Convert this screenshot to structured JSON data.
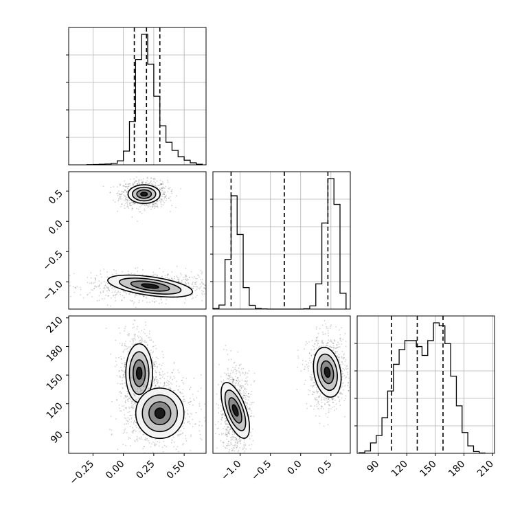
{
  "chart_data": [
    {
      "type": "histogram",
      "panel": "marginal-p1",
      "xlim": [
        -0.45,
        0.68
      ],
      "grid": true,
      "bin_edges": [
        -0.3,
        -0.25,
        -0.2,
        -0.15,
        -0.1,
        -0.05,
        0.0,
        0.05,
        0.1,
        0.15,
        0.2,
        0.25,
        0.3,
        0.35,
        0.4,
        0.45,
        0.5,
        0.55,
        0.6,
        0.65
      ],
      "counts": [
        1,
        2,
        4,
        6,
        10,
        28,
        95,
        300,
        728,
        902,
        696,
        474,
        270,
        156,
        100,
        56,
        32,
        14,
        4
      ],
      "quantile_lines": [
        0.09,
        0.19,
        0.3
      ]
    },
    {
      "type": "contour-scatter",
      "panel": "joint-p1-p2",
      "xlim": [
        -0.45,
        0.68
      ],
      "ylim": [
        -1.45,
        0.82
      ],
      "ytick_labels": [
        "0.5",
        "0.0",
        "−0.5",
        "−1.0"
      ],
      "yticks": [
        0.5,
        0.0,
        -0.5,
        -1.0
      ],
      "clusters": [
        {
          "center": [
            0.17,
            0.45
          ],
          "spread": [
            0.06,
            0.07
          ],
          "angle_deg": 0
        },
        {
          "center": [
            0.22,
            -1.07
          ],
          "spread": [
            0.16,
            0.07
          ],
          "angle_deg": -8
        }
      ]
    },
    {
      "type": "contour-scatter",
      "panel": "joint-p1-p3",
      "xlim": [
        -0.45,
        0.68
      ],
      "ylim": [
        68,
        212
      ],
      "ytick_labels": [
        "210",
        "180",
        "150",
        "120",
        "90"
      ],
      "yticks": [
        210,
        180,
        150,
        120,
        90
      ],
      "xtick_labels": [
        "−0.25",
        "0.00",
        "0.25",
        "0.50"
      ],
      "xticks": [
        -0.25,
        0.0,
        0.25,
        0.5
      ],
      "clusters": [
        {
          "center": [
            0.13,
            152
          ],
          "spread": [
            0.05,
            14
          ]
        },
        {
          "center": [
            0.3,
            110
          ],
          "spread": [
            0.09,
            12
          ]
        }
      ]
    },
    {
      "type": "histogram",
      "panel": "marginal-p2",
      "xlim": [
        -1.45,
        0.82
      ],
      "grid": true,
      "bin_edges": [
        -1.45,
        -1.35,
        -1.25,
        -1.15,
        -1.05,
        -0.95,
        -0.85,
        -0.75,
        -0.65,
        -0.55,
        -0.45,
        -0.35,
        -0.25,
        -0.15,
        -0.05,
        0.05,
        0.15,
        0.25,
        0.35,
        0.45,
        0.55,
        0.65,
        0.75
      ],
      "counts": [
        4,
        28,
        346,
        790,
        520,
        150,
        26,
        4,
        1,
        0,
        0,
        0,
        0,
        0,
        0,
        2,
        22,
        176,
        600,
        910,
        730,
        110
      ],
      "quantile_lines": [
        -1.15,
        -0.27,
        0.45
      ]
    },
    {
      "type": "contour-scatter",
      "panel": "joint-p2-p3",
      "xlim": [
        -1.45,
        0.82
      ],
      "ylim": [
        68,
        212
      ],
      "xtick_labels": [
        "−1.0",
        "−0.5",
        "0.0",
        "0.5"
      ],
      "xticks": [
        -1.0,
        -0.5,
        0.0,
        0.5
      ],
      "clusters": [
        {
          "center": [
            -1.08,
            113
          ],
          "spread": [
            0.08,
            14
          ],
          "angle_deg": 20
        },
        {
          "center": [
            0.44,
            153
          ],
          "spread": [
            0.1,
            12
          ],
          "angle_deg": 10
        }
      ]
    },
    {
      "type": "histogram",
      "panel": "marginal-p3",
      "xlim": [
        68,
        212
      ],
      "grid": true,
      "bin_edges": [
        70,
        76,
        82,
        88,
        94,
        100,
        106,
        112,
        118,
        124,
        130,
        136,
        142,
        148,
        154,
        160,
        166,
        172,
        178,
        184,
        190,
        196,
        202
      ],
      "counts": [
        2,
        8,
        35,
        60,
        120,
        210,
        300,
        350,
        380,
        380,
        360,
        330,
        380,
        440,
        430,
        370,
        260,
        160,
        70,
        25,
        6,
        1
      ],
      "quantile_lines": [
        104,
        131,
        158
      ],
      "xtick_labels": [
        "90",
        "120",
        "150",
        "180",
        "210"
      ],
      "xticks": [
        90,
        120,
        150,
        180,
        210
      ]
    }
  ]
}
